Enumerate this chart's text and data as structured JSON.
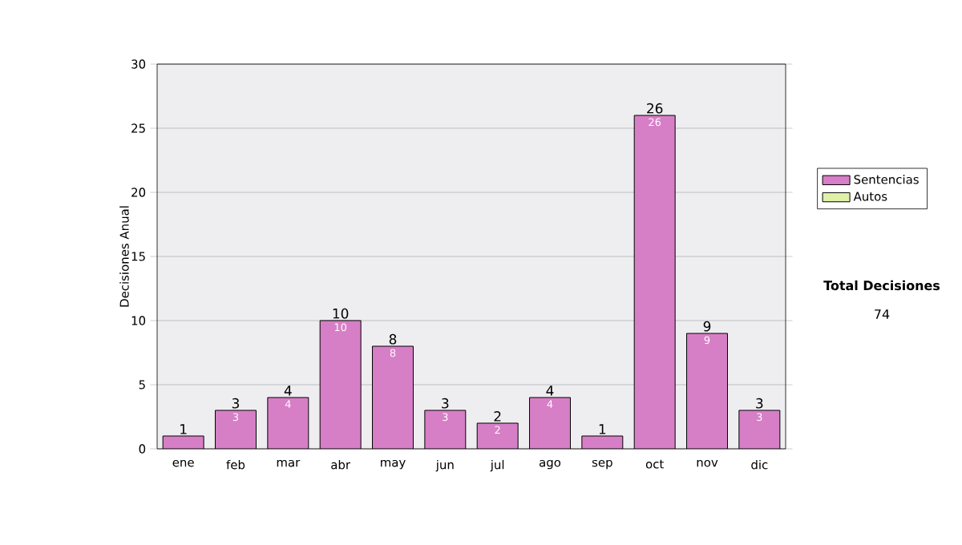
{
  "chart_data": {
    "type": "bar",
    "stacked": true,
    "categories": [
      "ene",
      "feb",
      "mar",
      "abr",
      "may",
      "jun",
      "jul",
      "ago",
      "sep",
      "oct",
      "nov",
      "dic"
    ],
    "series": [
      {
        "name": "Sentencias",
        "color": "#d77fc6",
        "values": [
          1,
          3,
          4,
          10,
          8,
          3,
          2,
          4,
          1,
          26,
          9,
          3
        ],
        "value_labels": [
          null,
          "3",
          "4",
          "10",
          "8",
          "3",
          "2",
          "4",
          null,
          "26",
          "9",
          "3"
        ]
      },
      {
        "name": "Autos",
        "color": "#dff0a8",
        "values": [
          0,
          0,
          0,
          0,
          0,
          0,
          0,
          0,
          0,
          0,
          0,
          0
        ]
      }
    ],
    "totals": [
      "1",
      "3",
      "4",
      "10",
      "8",
      "3",
      "2",
      "4",
      "1",
      "26",
      "9",
      "3"
    ],
    "ylabel": "Decisiones Anual",
    "ylim": [
      0,
      30
    ],
    "yticks": [
      0,
      5,
      10,
      15,
      20,
      25,
      30
    ],
    "grid": "y",
    "legend": "right",
    "annotations": [
      "Total Decisiones",
      "74"
    ]
  }
}
